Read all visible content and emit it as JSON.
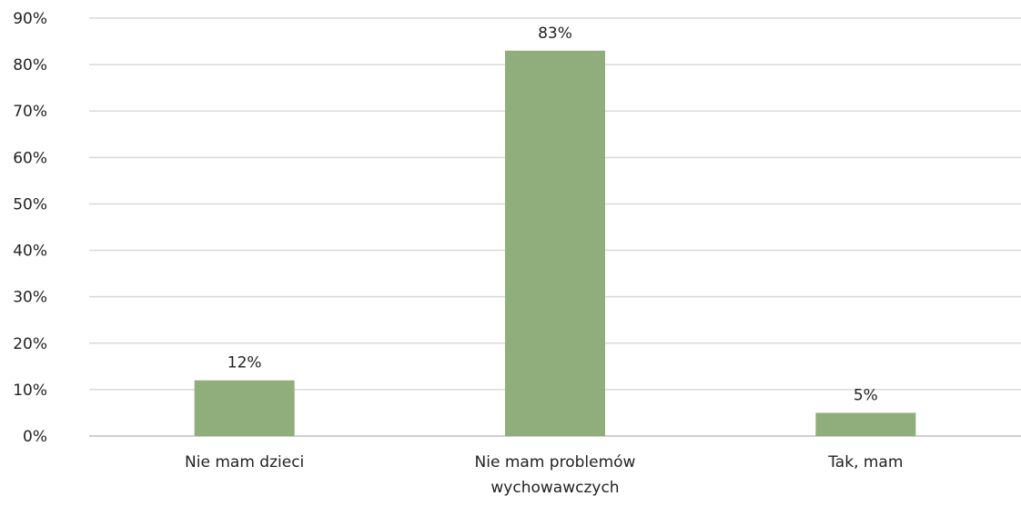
{
  "chart_data": {
    "type": "bar",
    "categories": [
      [
        "Nie mam dzieci"
      ],
      [
        "Nie mam problemów",
        "wychowawczych"
      ],
      [
        "Tak, mam"
      ]
    ],
    "values": [
      12,
      83,
      5
    ],
    "data_labels": [
      "12%",
      "83%",
      "5%"
    ],
    "yticks": [
      "0%",
      "10%",
      "20%",
      "30%",
      "40%",
      "50%",
      "60%",
      "70%",
      "80%",
      "90%"
    ],
    "ylim": [
      0,
      90
    ],
    "grid": true,
    "legend": "none",
    "bar_color": "#8fae7c",
    "grid_color": "#d9d9d9"
  }
}
